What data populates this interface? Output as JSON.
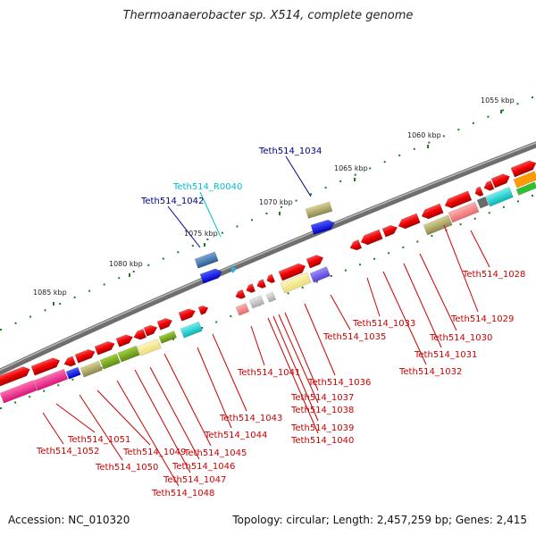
{
  "title": "Thermoanaerobacter sp. X514, complete genome",
  "accession": "Accession: NC_010320",
  "topology": "Topology: circular; Length: 2,457,259 bp; Genes: 2,415",
  "colors": {
    "gene_label_red": "#cc0000",
    "gene_label_blue": "#00008b",
    "gene_label_cyan": "#00bcd4",
    "backbone": "#7a7a7a",
    "tick": "#1e7a1e"
  },
  "kbp_ticks": [
    {
      "kbp": 1055,
      "label": "1055 kbp"
    },
    {
      "kbp": 1060,
      "label": "1060 kbp"
    },
    {
      "kbp": 1065,
      "label": "1065 kbp"
    },
    {
      "kbp": 1070,
      "label": "1070 kbp"
    },
    {
      "kbp": 1075,
      "label": "1075 kbp"
    },
    {
      "kbp": 1080,
      "label": "1080 kbp"
    },
    {
      "kbp": 1085,
      "label": "1085 kbp"
    }
  ],
  "gene_labels": [
    {
      "name": "Teth514_1034",
      "color": "blue"
    },
    {
      "name": "Teth514_R0040",
      "color": "cyan"
    },
    {
      "name": "Teth514_1042",
      "color": "blue"
    },
    {
      "name": "Teth514_1028",
      "color": "red"
    },
    {
      "name": "Teth514_1029",
      "color": "red"
    },
    {
      "name": "Teth514_1030",
      "color": "red"
    },
    {
      "name": "Teth514_1031",
      "color": "red"
    },
    {
      "name": "Teth514_1032",
      "color": "red"
    },
    {
      "name": "Teth514_1033",
      "color": "red"
    },
    {
      "name": "Teth514_1035",
      "color": "red"
    },
    {
      "name": "Teth514_1036",
      "color": "red"
    },
    {
      "name": "Teth514_1037",
      "color": "red"
    },
    {
      "name": "Teth514_1038",
      "color": "red"
    },
    {
      "name": "Teth514_1039",
      "color": "red"
    },
    {
      "name": "Teth514_1040",
      "color": "red"
    },
    {
      "name": "Teth514_1041",
      "color": "red"
    },
    {
      "name": "Teth514_1043",
      "color": "red"
    },
    {
      "name": "Teth514_1044",
      "color": "red"
    },
    {
      "name": "Teth514_1045",
      "color": "red"
    },
    {
      "name": "Teth514_1046",
      "color": "red"
    },
    {
      "name": "Teth514_1047",
      "color": "red"
    },
    {
      "name": "Teth514_1048",
      "color": "red"
    },
    {
      "name": "Teth514_1049",
      "color": "red"
    },
    {
      "name": "Teth514_1050",
      "color": "red"
    },
    {
      "name": "Teth514_1051",
      "color": "red"
    },
    {
      "name": "Teth514_1052",
      "color": "red"
    }
  ]
}
